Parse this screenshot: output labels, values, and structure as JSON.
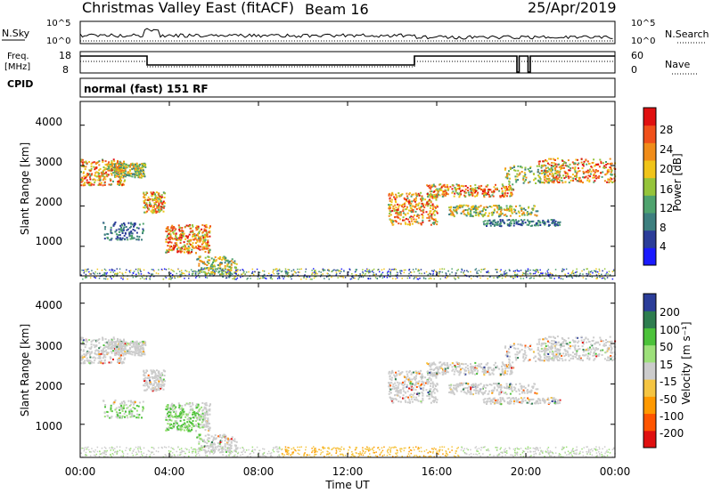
{
  "header": {
    "title": "Christmas Valley East (fitACF)",
    "beam": "Beam 16",
    "date": "25/Apr/2019"
  },
  "noise_panel": {
    "left_label": "N.Sky",
    "left_ticks": [
      "10^5",
      "10^0"
    ],
    "right_label": "N.Search",
    "right_ticks": [
      "10^5",
      "10^0"
    ]
  },
  "freq_panel": {
    "left_label_line1": "Freq.",
    "left_label_line2": "[MHz]",
    "left_ticks": [
      "18",
      "8"
    ],
    "right_label": "Nave",
    "right_ticks": [
      "60",
      "0"
    ]
  },
  "cpid": {
    "label": "CPID",
    "text": "normal (fast) 151 RF"
  },
  "x_axis": {
    "label": "Time UT",
    "ticks": [
      "00:00",
      "04:00",
      "08:00",
      "12:00",
      "16:00",
      "20:00",
      "00:00"
    ]
  },
  "colors": {
    "power_scale": [
      "#1a1aff",
      "#2b3d99",
      "#3d7f7f",
      "#4fa36e",
      "#95c43a",
      "#f0c419",
      "#f08c19",
      "#f0501a",
      "#e01010"
    ],
    "velocity_scale": [
      "#e01010",
      "#ff5500",
      "#ff9900",
      "#f5c542",
      "#cccccc",
      "#9de07a",
      "#4cc23a",
      "#2e7d4f",
      "#2b3d99"
    ]
  },
  "chart_data": [
    {
      "type": "heatmap",
      "panel": "power",
      "ylabel": "Slant Range [km]",
      "ylim": [
        180,
        4500
      ],
      "yticks": [
        "1000",
        "2000",
        "3000",
        "4000"
      ],
      "xlabel": "",
      "colorbar_label": "Power [dB]",
      "colorbar_ticks": [
        "4",
        "8",
        "12",
        "16",
        "20",
        "24",
        "28"
      ],
      "clim": [
        0,
        30
      ]
    },
    {
      "type": "heatmap",
      "panel": "velocity",
      "ylabel": "Slant Range [km]",
      "ylim": [
        180,
        4500
      ],
      "yticks": [
        "1000",
        "2000",
        "3000",
        "4000"
      ],
      "xlabel": "Time UT",
      "colorbar_label": "Velocity [m s⁻¹]",
      "colorbar_ticks": [
        "200",
        "100",
        "50",
        "15",
        "-15",
        "-50",
        "-100",
        "-200"
      ]
    }
  ]
}
